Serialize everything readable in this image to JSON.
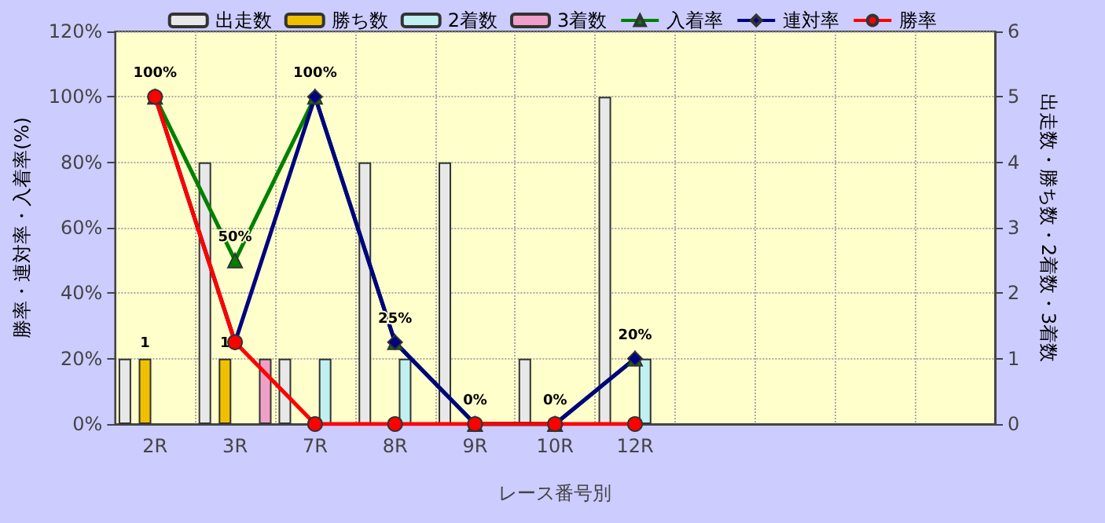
{
  "chart_data": {
    "type": "bar",
    "categories": [
      "2R",
      "3R",
      "7R",
      "8R",
      "9R",
      "10R",
      "12R",
      null,
      null,
      null,
      null
    ],
    "xlabel": "レース番号別",
    "ylabel": "勝率・連対率・入着率(%)",
    "y2label": "出走数・勝ち数・2着数・3着数",
    "series": [
      {
        "name": "出走数",
        "axis": "y2",
        "color": "#e8e8e8",
        "values": [
          1,
          4,
          1,
          4,
          4,
          1,
          5,
          null,
          null,
          null,
          null
        ]
      },
      {
        "name": "勝ち数",
        "axis": "y2",
        "color": "#f0c000",
        "values": [
          1,
          1,
          null,
          null,
          null,
          null,
          null,
          null,
          null,
          null,
          null
        ],
        "value_labels": [
          "1",
          "1",
          null,
          null,
          null,
          null,
          null,
          null,
          null,
          null,
          null
        ]
      },
      {
        "name": "2着数",
        "axis": "y2",
        "color": "#c0f0f0",
        "values": [
          null,
          null,
          1,
          1,
          null,
          null,
          1,
          null,
          null,
          null,
          null
        ]
      },
      {
        "name": "3着数",
        "axis": "y2",
        "color": "#f0a0c8",
        "values": [
          null,
          1,
          null,
          null,
          null,
          null,
          null,
          null,
          null,
          null,
          null
        ]
      },
      {
        "name": "入着率",
        "type": "line",
        "marker": "triangle",
        "color": "#008000",
        "values": [
          100,
          50,
          100,
          25,
          0,
          0,
          20,
          null,
          null,
          null,
          null
        ],
        "value_labels": [
          "100%",
          "50%",
          "100%",
          "25%",
          "0%",
          "0%",
          "20%",
          null,
          null,
          null,
          null
        ]
      },
      {
        "name": "連対率",
        "type": "line",
        "marker": "diamond",
        "color": "#000080",
        "values": [
          100,
          25,
          100,
          25,
          0,
          0,
          20,
          null,
          null,
          null,
          null
        ]
      },
      {
        "name": "勝率",
        "type": "line",
        "marker": "circle",
        "color": "#ff0000",
        "values": [
          100,
          25,
          0,
          0,
          0,
          0,
          0,
          null,
          null,
          null,
          null
        ]
      }
    ],
    "ylim": [
      0,
      120
    ],
    "yticks": [
      {
        "value": 0,
        "label": "0%"
      },
      {
        "value": 20,
        "label": "20%"
      },
      {
        "value": 40,
        "label": "40%"
      },
      {
        "value": 60,
        "label": "60%"
      },
      {
        "value": 80,
        "label": "80%"
      },
      {
        "value": 100,
        "label": "100%"
      },
      {
        "value": 120,
        "label": "120%"
      }
    ],
    "y2lim": [
      0,
      6
    ],
    "y2ticks": [
      0,
      1,
      2,
      3,
      4,
      5,
      6
    ],
    "grid": true,
    "legend": "top"
  }
}
